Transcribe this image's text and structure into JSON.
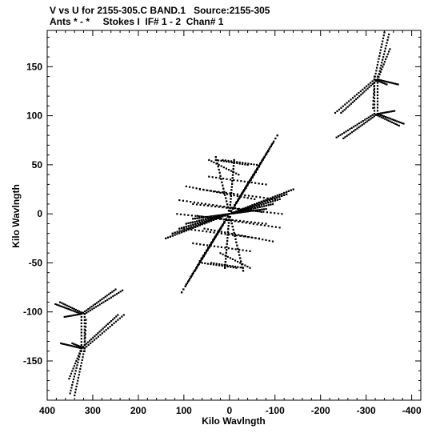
{
  "header": {
    "line1": "V vs U for 2155-305.C BAND.1   Source:2155-305",
    "line2": "Ants * - *     Stokes I  IF# 1 - 2  Chan# 1"
  },
  "chart_data": {
    "type": "scatter",
    "title": "V vs U for 2155-305.C BAND.1   Source:2155-305",
    "subtitle": "Ants * - *     Stokes I  IF# 1 - 2  Chan# 1",
    "xlabel": "Kilo Wavlngth",
    "ylabel": "Kilo Wavlngth",
    "xlim": [
      400,
      -420
    ],
    "ylim": [
      -190,
      187
    ],
    "x_reversed": true,
    "grid": false,
    "xticks": [
      400,
      300,
      200,
      100,
      0,
      -100,
      -200,
      -300,
      -400
    ],
    "xtick_labels": [
      "400",
      "300",
      "200",
      "100",
      "0",
      "-100",
      "-200",
      "-300",
      "-400"
    ],
    "yticks": [
      150,
      100,
      50,
      0,
      -50,
      -100,
      -150
    ],
    "ytick_labels": [
      "150",
      "100",
      "50",
      "0",
      "-50",
      "-100",
      "-150"
    ],
    "tracks": [
      {
        "from": [
          -325,
          137
        ],
        "to": [
          -350,
          183
        ],
        "n": 16
      },
      {
        "from": [
          -325,
          137
        ],
        "to": [
          -352,
          168
        ],
        "n": 12
      },
      {
        "from": [
          -325,
          137
        ],
        "to": [
          -370,
          132
        ],
        "n": 14
      },
      {
        "from": [
          -325,
          137
        ],
        "to": [
          -245,
          103
        ],
        "n": 22
      },
      {
        "from": [
          -325,
          102
        ],
        "to": [
          -325,
          140
        ],
        "n": 12
      },
      {
        "from": [
          -325,
          102
        ],
        "to": [
          -362,
          105
        ],
        "n": 10
      },
      {
        "from": [
          -325,
          102
        ],
        "to": [
          -382,
          92
        ],
        "n": 16
      },
      {
        "from": [
          -325,
          102
        ],
        "to": [
          -250,
          77
        ],
        "n": 20
      },
      {
        "from": [
          318,
          -102
        ],
        "to": [
          372,
          -90
        ],
        "n": 14
      },
      {
        "from": [
          318,
          -102
        ],
        "to": [
          235,
          -78
        ],
        "n": 20
      },
      {
        "from": [
          318,
          -102
        ],
        "to": [
          318,
          -140
        ],
        "n": 12
      },
      {
        "from": [
          318,
          -137
        ],
        "to": [
          345,
          -132
        ],
        "n": 8
      },
      {
        "from": [
          318,
          -137
        ],
        "to": [
          232,
          -103
        ],
        "n": 20
      },
      {
        "from": [
          318,
          -137
        ],
        "to": [
          340,
          -185
        ],
        "n": 16
      },
      {
        "from": [
          318,
          -137
        ],
        "to": [
          315,
          -108
        ],
        "n": 8
      },
      {
        "from": [
          0,
          0
        ],
        "to": [
          -105,
          80
        ],
        "n": 26
      },
      {
        "from": [
          0,
          0
        ],
        "to": [
          -95,
          72
        ],
        "n": 24
      },
      {
        "from": [
          0,
          0
        ],
        "to": [
          -85,
          64
        ],
        "n": 22
      },
      {
        "from": [
          0,
          0
        ],
        "to": [
          -75,
          57
        ],
        "n": 20
      },
      {
        "from": [
          0,
          0
        ],
        "to": [
          -65,
          48
        ],
        "n": 18
      },
      {
        "from": [
          0,
          0
        ],
        "to": [
          105,
          -80
        ],
        "n": 26
      },
      {
        "from": [
          0,
          0
        ],
        "to": [
          95,
          -72
        ],
        "n": 24
      },
      {
        "from": [
          0,
          0
        ],
        "to": [
          85,
          -64
        ],
        "n": 22
      },
      {
        "from": [
          0,
          0
        ],
        "to": [
          75,
          -57
        ],
        "n": 20
      },
      {
        "from": [
          0,
          0
        ],
        "to": [
          65,
          -48
        ],
        "n": 18
      },
      {
        "from": [
          0,
          0
        ],
        "to": [
          -140,
          25
        ],
        "n": 28
      },
      {
        "from": [
          0,
          0
        ],
        "to": [
          -125,
          20
        ],
        "n": 24
      },
      {
        "from": [
          0,
          0
        ],
        "to": [
          -110,
          15
        ],
        "n": 22
      },
      {
        "from": [
          0,
          0
        ],
        "to": [
          -95,
          10
        ],
        "n": 20
      },
      {
        "from": [
          0,
          0
        ],
        "to": [
          -80,
          5
        ],
        "n": 18
      },
      {
        "from": [
          0,
          0
        ],
        "to": [
          140,
          -25
        ],
        "n": 28
      },
      {
        "from": [
          0,
          0
        ],
        "to": [
          125,
          -20
        ],
        "n": 24
      },
      {
        "from": [
          0,
          0
        ],
        "to": [
          110,
          -15
        ],
        "n": 22
      },
      {
        "from": [
          0,
          0
        ],
        "to": [
          95,
          -10
        ],
        "n": 20
      },
      {
        "from": [
          0,
          0
        ],
        "to": [
          80,
          -5
        ],
        "n": 18
      },
      {
        "from": [
          0,
          0
        ],
        "to": [
          -10,
          55
        ],
        "n": 18
      },
      {
        "from": [
          0,
          0
        ],
        "to": [
          10,
          -55
        ],
        "n": 18
      },
      {
        "from": [
          0,
          0
        ],
        "to": [
          30,
          58
        ],
        "n": 18
      },
      {
        "from": [
          0,
          0
        ],
        "to": [
          -30,
          -58
        ],
        "n": 18
      },
      {
        "from": [
          95,
          28
        ],
        "to": [
          -55,
          15
        ],
        "n": 20
      },
      {
        "from": [
          110,
          14
        ],
        "to": [
          -70,
          2
        ],
        "n": 22
      },
      {
        "from": [
          115,
          0
        ],
        "to": [
          -80,
          -10
        ],
        "n": 24
      },
      {
        "from": [
          100,
          -15
        ],
        "to": [
          -65,
          -25
        ],
        "n": 20
      },
      {
        "from": [
          80,
          -30
        ],
        "to": [
          -45,
          -38
        ],
        "n": 16
      },
      {
        "from": [
          45,
          55
        ],
        "to": [
          -20,
          40
        ],
        "n": 12
      },
      {
        "from": [
          -60,
          50
        ],
        "to": [
          15,
          55
        ],
        "n": 12
      },
      {
        "from": [
          -30,
          -55
        ],
        "to": [
          40,
          -50
        ],
        "n": 12
      }
    ]
  }
}
